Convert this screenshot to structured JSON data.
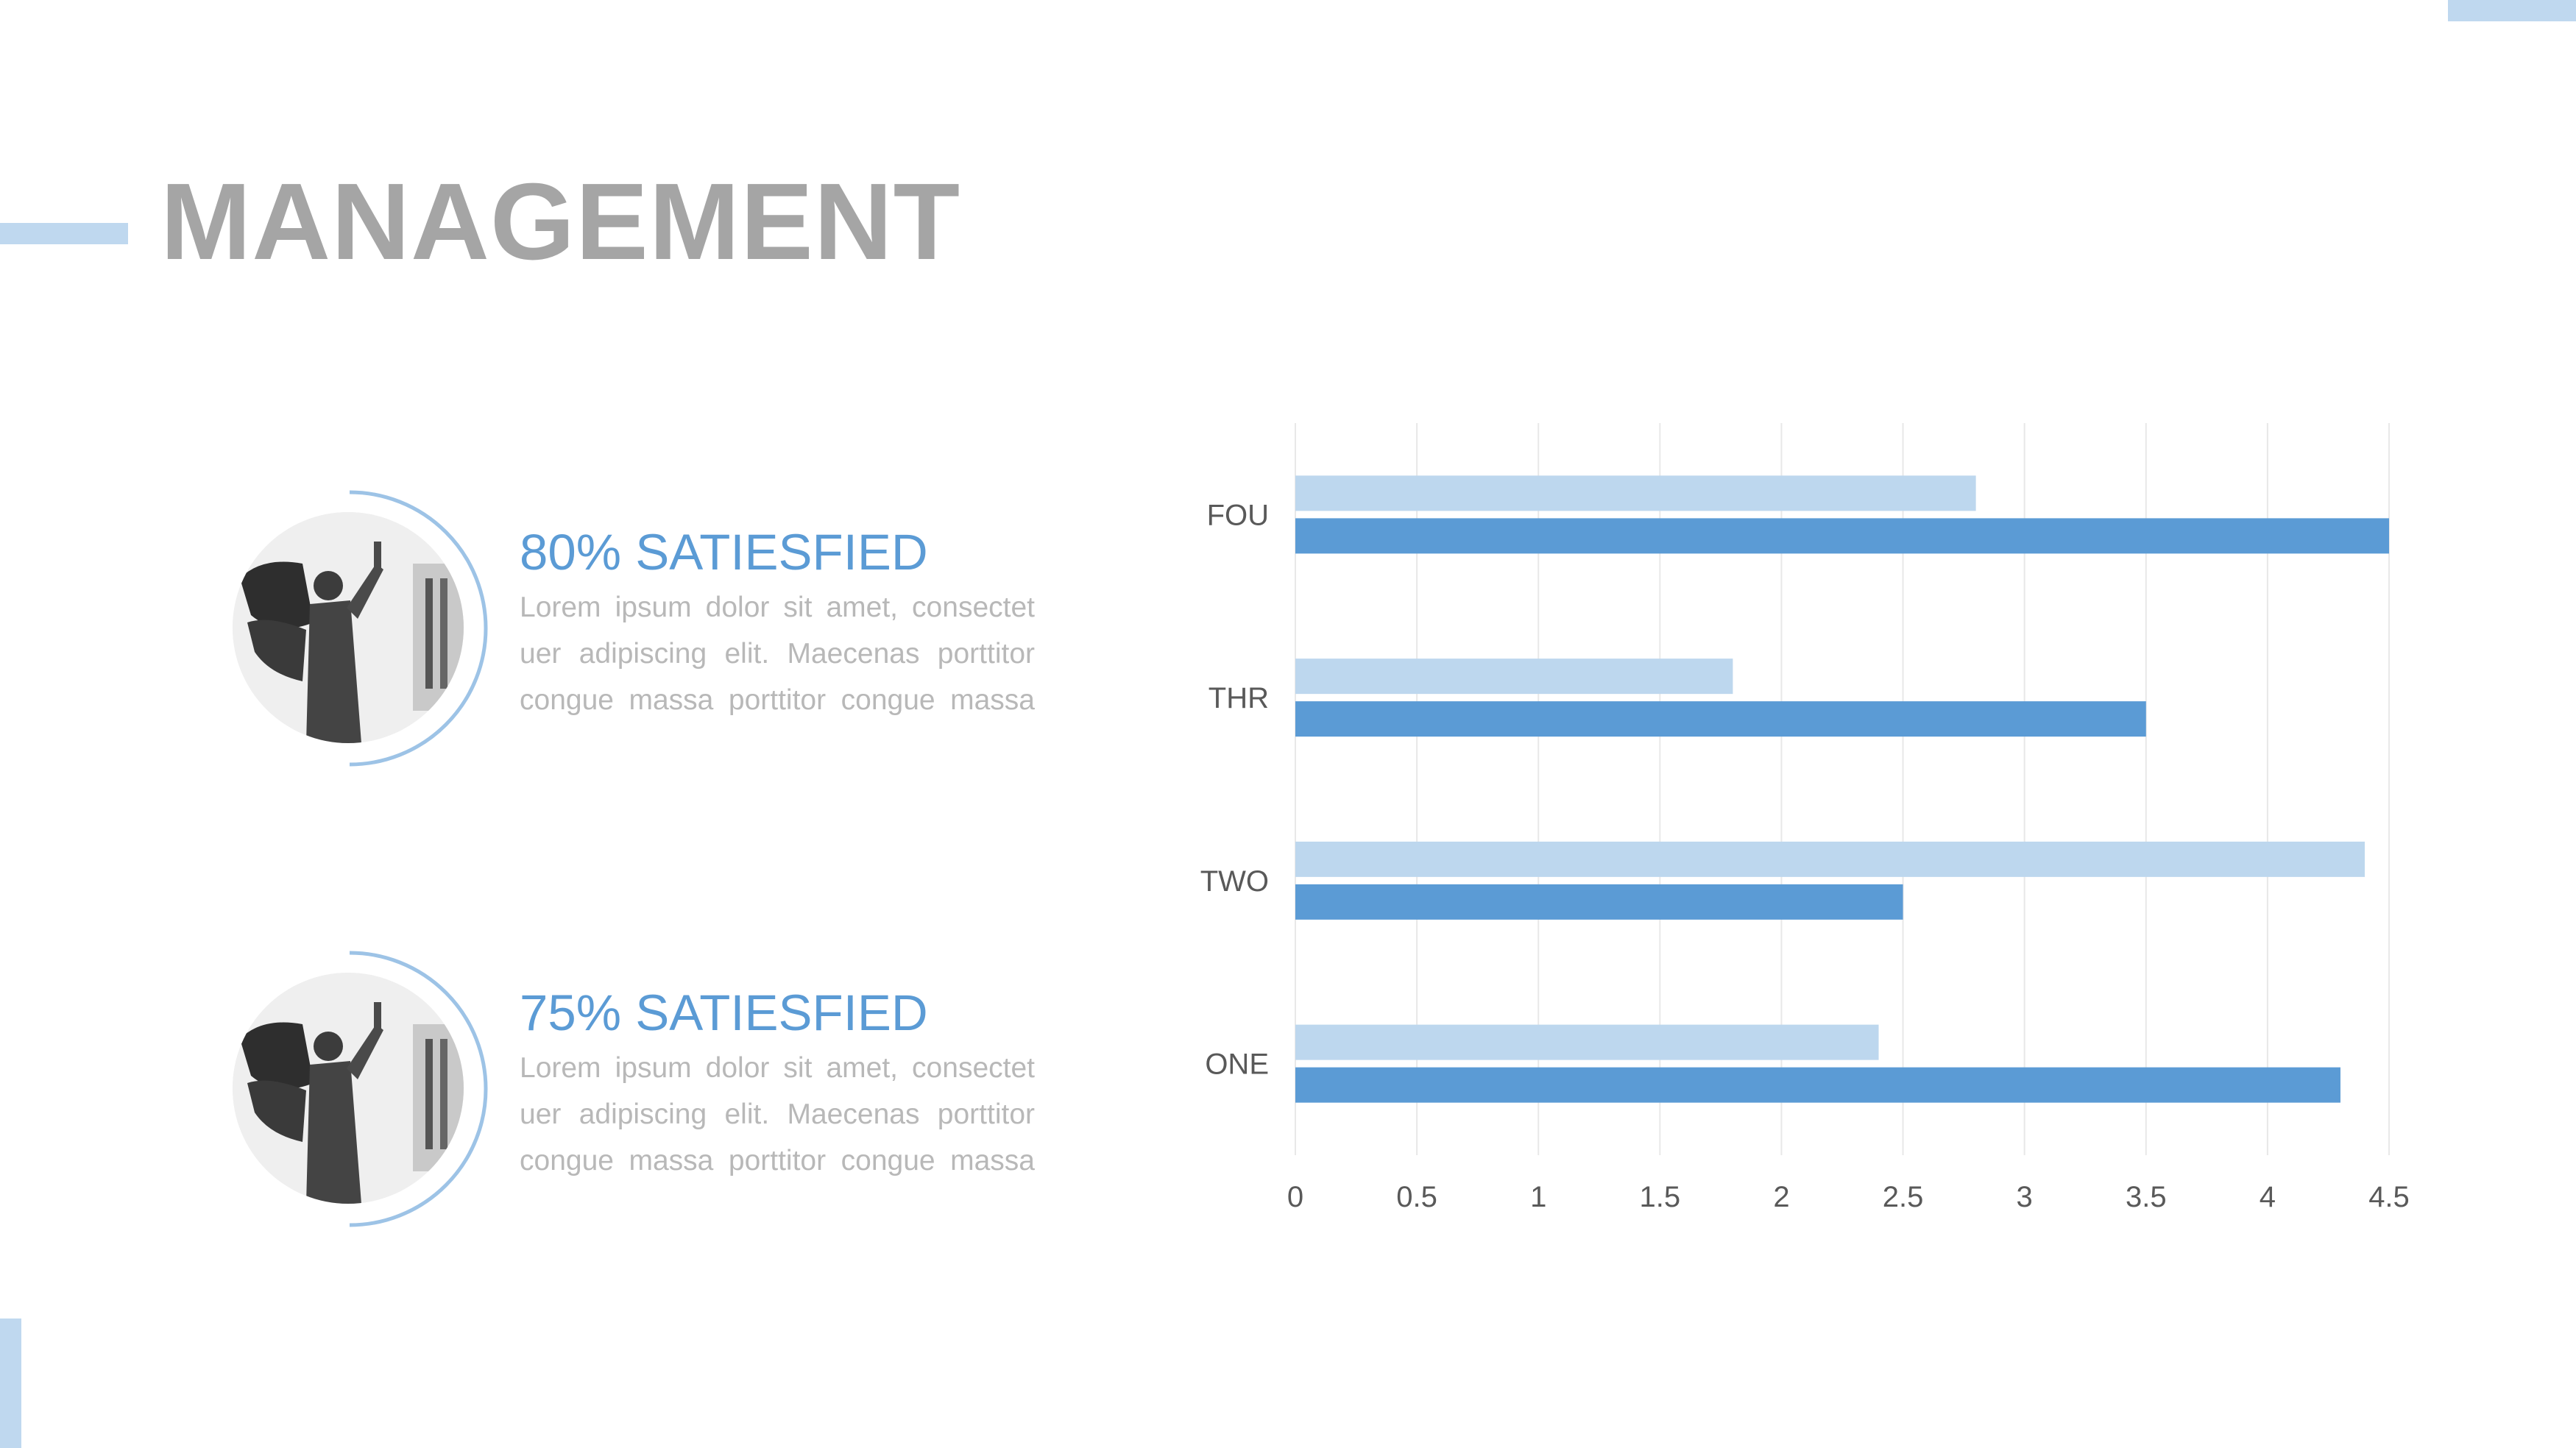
{
  "title": "MANAGEMENT",
  "items": [
    {
      "heading": "80% SATIESFIED",
      "text": "Lorem ipsum dolor sit amet, consectet uer adipiscing elit. Maecenas porttitor congue massa porttitor congue massa"
    },
    {
      "heading": "75% SATIESFIED",
      "text": "Lorem ipsum dolor sit amet, consectet uer adipiscing elit. Maecenas porttitor congue massa porttitor congue massa"
    }
  ],
  "colors": {
    "accent": "#5b9bd5",
    "accent_light": "#bdd7ee",
    "title_gray": "#a5a5a5",
    "text_gray": "#b8b8b8"
  },
  "icons": {
    "avatar": "angel-statue-image"
  },
  "chart_data": {
    "type": "bar",
    "orientation": "horizontal",
    "categories": [
      "ONE",
      "TWO",
      "THR",
      "FOU"
    ],
    "series": [
      {
        "values": [
          4.3,
          2.5,
          3.5,
          4.5
        ],
        "color": "#5b9bd5"
      },
      {
        "values": [
          2.4,
          4.4,
          1.8,
          2.8
        ],
        "color": "#bdd7ee"
      }
    ],
    "xlim": [
      0,
      4.5
    ],
    "xticks": [
      "0",
      "0.5",
      "1",
      "1.5",
      "2",
      "2.5",
      "3",
      "3.5",
      "4",
      "4.5"
    ],
    "grid": true,
    "legend": false
  }
}
